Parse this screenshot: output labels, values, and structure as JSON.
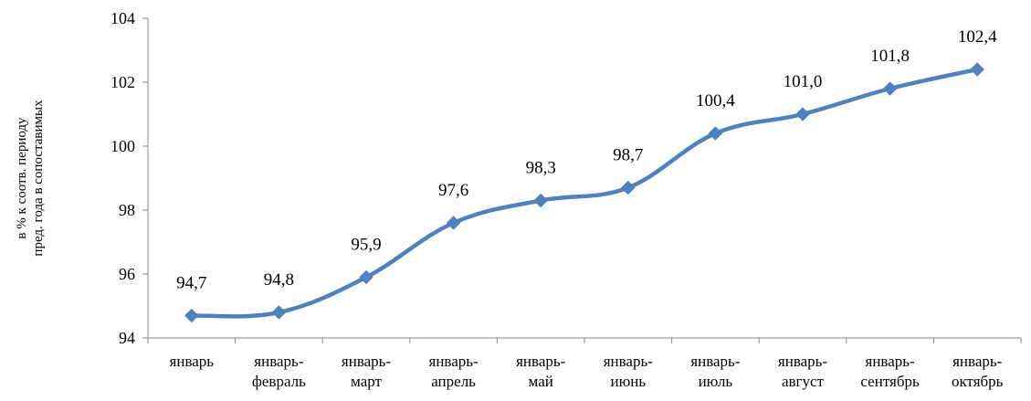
{
  "chart_data": {
    "type": "line",
    "ylabel_lines": [
      "в % к соотв. периоду",
      "пред. года в сопоставимых"
    ],
    "xlabel": "",
    "title": "",
    "ylim": [
      94,
      104
    ],
    "yticks": [
      "94",
      "96",
      "98",
      "100",
      "102",
      "104"
    ],
    "ytick_values": [
      94,
      96,
      98,
      100,
      102,
      104
    ],
    "categories": [
      [
        "январь"
      ],
      [
        "январь-",
        "февраль"
      ],
      [
        "январь-",
        "март"
      ],
      [
        "январь-",
        "апрель"
      ],
      [
        "январь-",
        "май"
      ],
      [
        "январь-",
        "июнь"
      ],
      [
        "январь-",
        "июль"
      ],
      [
        "январь-",
        "август"
      ],
      [
        "январь-",
        "сентябрь"
      ],
      [
        "январь-",
        "октябрь"
      ]
    ],
    "series": [
      {
        "values": [
          94.7,
          94.8,
          95.9,
          97.6,
          98.3,
          98.7,
          100.4,
          101.0,
          101.8,
          102.4
        ],
        "data_labels": [
          "94,7",
          "94,8",
          "95,9",
          "97,6",
          "98,3",
          "98,7",
          "100,4",
          "101,0",
          "101,8",
          "102,4"
        ],
        "color": "#4f81bd",
        "marker": "diamond",
        "smooth": true
      }
    ],
    "grid": false,
    "legend": "none"
  }
}
